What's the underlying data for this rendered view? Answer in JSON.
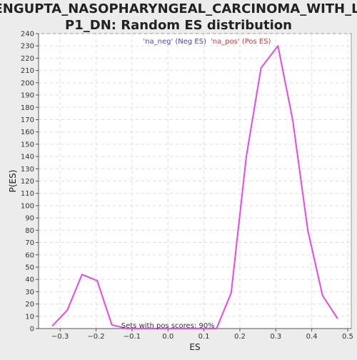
{
  "chart_data": {
    "type": "line",
    "title_line1": "SENGUPTA_NASOPHARYNGEAL_CARCINOMA_WITH_LM",
    "title_line2": "P1_DN: Random ES distribution",
    "xlabel": "ES",
    "ylabel": "P(ES)",
    "xlim": [
      -0.36,
      0.51
    ],
    "ylim": [
      0,
      240
    ],
    "x_ticks": [
      -0.3,
      -0.2,
      -0.1,
      0.0,
      0.1,
      0.2,
      0.3,
      0.4,
      0.5
    ],
    "x_tick_labels": [
      "−0.3",
      "−0.2",
      "−0.1",
      "0.0",
      "0.1",
      "0.2",
      "0.3",
      "0.4",
      "0.5"
    ],
    "y_ticks": [
      0,
      10,
      20,
      30,
      40,
      50,
      60,
      70,
      80,
      90,
      100,
      110,
      120,
      130,
      140,
      150,
      160,
      170,
      180,
      190,
      200,
      210,
      220,
      230,
      240
    ],
    "grid": true,
    "legend": [
      {
        "label": "'na_neg' (Neg ES)",
        "color": "#4444cc"
      },
      {
        "label": "'na_pos' (Pos ES)",
        "color": "#dd3333"
      }
    ],
    "legend_placement": "top-center",
    "annotation": "Sets with pos scores: 90%",
    "series": [
      {
        "color": "#ee44ee",
        "x": [
          -0.322,
          -0.28,
          -0.239,
          -0.197,
          -0.156,
          -0.114,
          -0.073,
          -0.031,
          0.01,
          0.052,
          0.093,
          0.135,
          0.176,
          0.218,
          0.259,
          0.306,
          0.347,
          0.389,
          0.43,
          0.472
        ],
        "y": [
          2,
          15,
          44,
          39,
          3,
          0,
          0,
          0,
          0,
          0,
          0,
          0,
          29,
          140,
          212,
          230,
          170,
          80,
          27,
          8
        ]
      }
    ]
  }
}
